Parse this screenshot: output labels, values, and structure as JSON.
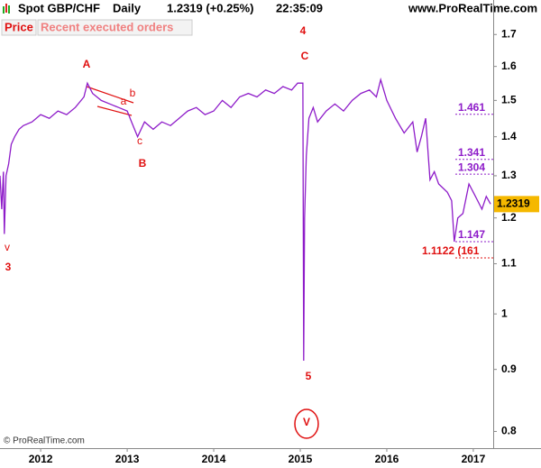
{
  "header": {
    "symbol": "Spot GBP/CHF",
    "period": "Daily",
    "quote": "1.2319 (+0.25%)",
    "time": "22:35:09",
    "site": "www.ProRealTime.com"
  },
  "tabs": [
    "Price",
    "Recent executed orders"
  ],
  "copyright": "© ProRealTime.com",
  "chart_data": {
    "type": "line",
    "log_scale": true,
    "color": "#8e1cc9",
    "x": [
      2011.53,
      2011.55,
      2011.57,
      2011.58,
      2011.6,
      2011.63,
      2011.66,
      2011.7,
      2011.75,
      2011.8,
      2011.9,
      2012.0,
      2012.1,
      2012.2,
      2012.3,
      2012.4,
      2012.5,
      2012.54,
      2012.6,
      2012.7,
      2012.8,
      2012.9,
      2013.0,
      2013.05,
      2013.12,
      2013.2,
      2013.3,
      2013.4,
      2013.5,
      2013.6,
      2013.7,
      2013.8,
      2013.9,
      2014.0,
      2014.1,
      2014.2,
      2014.3,
      2014.4,
      2014.5,
      2014.6,
      2014.7,
      2014.8,
      2014.9,
      2014.97,
      2015.03,
      2015.04,
      2015.05,
      2015.07,
      2015.1,
      2015.15,
      2015.2,
      2015.3,
      2015.4,
      2015.5,
      2015.6,
      2015.7,
      2015.8,
      2015.88,
      2015.93,
      2016.0,
      2016.1,
      2016.2,
      2016.3,
      2016.35,
      2016.4,
      2016.45,
      2016.48,
      2016.5,
      2016.55,
      2016.6,
      2016.7,
      2016.75,
      2016.78,
      2016.82,
      2016.88,
      2016.95,
      2017.0,
      2017.05,
      2017.1,
      2017.15,
      2017.2
    ],
    "values": [
      1.3,
      1.22,
      1.31,
      1.164,
      1.3,
      1.33,
      1.38,
      1.4,
      1.42,
      1.43,
      1.44,
      1.46,
      1.45,
      1.47,
      1.46,
      1.48,
      1.51,
      1.55,
      1.52,
      1.5,
      1.49,
      1.48,
      1.47,
      1.44,
      1.4,
      1.44,
      1.42,
      1.44,
      1.43,
      1.45,
      1.47,
      1.48,
      1.46,
      1.47,
      1.5,
      1.48,
      1.51,
      1.52,
      1.51,
      1.53,
      1.52,
      1.54,
      1.53,
      1.55,
      1.55,
      0.915,
      1.2,
      1.35,
      1.45,
      1.48,
      1.44,
      1.47,
      1.49,
      1.47,
      1.5,
      1.52,
      1.53,
      1.51,
      1.56,
      1.5,
      1.45,
      1.41,
      1.44,
      1.36,
      1.4,
      1.45,
      1.35,
      1.29,
      1.31,
      1.28,
      1.26,
      1.24,
      1.147,
      1.2,
      1.21,
      1.28,
      1.26,
      1.24,
      1.22,
      1.25,
      1.2319
    ],
    "xlim": [
      2011.53,
      2017.23
    ],
    "xticks": [
      2012,
      2013,
      2014,
      2015,
      2016,
      2017
    ],
    "ylim": [
      0.775,
      1.76
    ],
    "yticks": [
      0.8,
      0.9,
      1,
      1.1,
      1.2,
      1.3,
      1.4,
      1.5,
      1.6,
      1.7
    ],
    "last_price": 1.2319,
    "levels": [
      {
        "value": 1.461,
        "label": "1.461",
        "color": "#8e1cc9"
      },
      {
        "value": 1.341,
        "label": "1.341",
        "color": "#8e1cc9"
      },
      {
        "value": 1.304,
        "label": "1.304",
        "color": "#8e1cc9"
      },
      {
        "value": 1.147,
        "label": "1.147",
        "color": "#8e1cc9"
      },
      {
        "value": 1.1122,
        "label": "1.1122 (161",
        "color": "#e01010"
      }
    ],
    "annotations": [
      "A",
      "a",
      "b",
      "c",
      "B",
      "4",
      "C",
      "5",
      "v",
      "3",
      "V"
    ]
  }
}
